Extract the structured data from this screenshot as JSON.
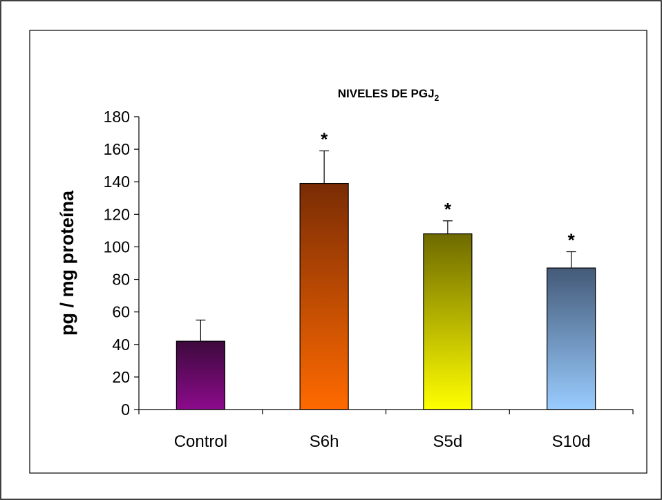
{
  "chart_data": {
    "type": "bar",
    "title": "NIVELES DE PGJ",
    "title_subscript": "2",
    "ylabel": "pg / mg proteína",
    "xlabel": "",
    "ylim": [
      0,
      180
    ],
    "yticks": [
      0,
      20,
      40,
      60,
      80,
      100,
      120,
      140,
      160,
      180
    ],
    "grid": false,
    "legend": "none",
    "categories": [
      "Control",
      "S6h",
      "S5d",
      "S10d"
    ],
    "values": [
      42,
      139,
      108,
      87
    ],
    "error_upper": [
      13,
      20,
      8,
      10
    ],
    "significance": [
      "",
      "*",
      "*",
      "*"
    ],
    "bar_gradients": [
      {
        "top": "#3d0a3d",
        "bottom": "#8c0a8c"
      },
      {
        "top": "#7a2c05",
        "bottom": "#ff6a00"
      },
      {
        "top": "#6e6a00",
        "bottom": "#ffff00"
      },
      {
        "top": "#445a78",
        "bottom": "#99ccff"
      }
    ]
  }
}
